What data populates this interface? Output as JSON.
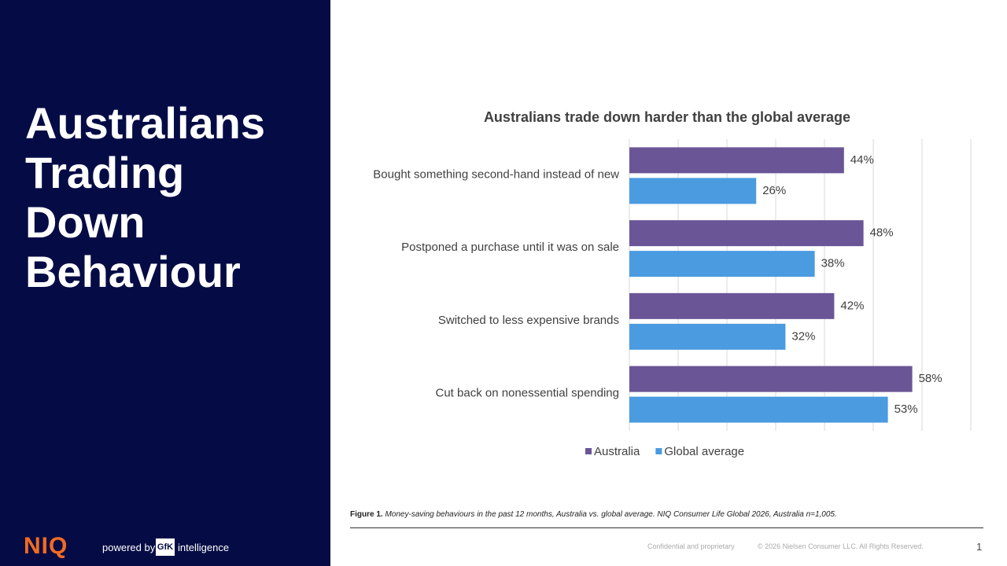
{
  "slide": {
    "title_lines": [
      "Australians",
      "Trading",
      "Down",
      "Behaviour"
    ],
    "caption": {
      "label": "Figure 1.",
      "text": "Money-saving behaviours in the past 12 months, Australia vs. global average. NIQ Consumer Life Global 2026, Australia n=1,005."
    },
    "footer": {
      "confidential": "Confidential and proprietary",
      "copyright": "© 2026 Nielsen Consumer LLC. All Rights Reserved.",
      "page": "1"
    },
    "logo": {
      "brand": "NIQ",
      "powered": "powered by",
      "gfk": "GfK",
      "intelligence": "intelligence"
    }
  },
  "chart_data": {
    "type": "hbar",
    "title": "Australians trade down harder than the global average",
    "categories": [
      "Bought something second-hand instead of new",
      "Postponed a purchase until it was on sale",
      "Switched to less expensive brands",
      "Cut back on nonessential spending"
    ],
    "series": [
      {
        "name": "Australia",
        "color": "#6a5696",
        "values": [
          44,
          48,
          42,
          58
        ],
        "value_labels": [
          "44%",
          "48%",
          "42%",
          "58%"
        ]
      },
      {
        "name": "Global average",
        "color": "#4a9be0",
        "values": [
          26,
          38,
          32,
          53
        ],
        "value_labels": [
          "26%",
          "38%",
          "32%",
          "53%"
        ]
      }
    ],
    "xlim": [
      0,
      70
    ],
    "xticks": [
      0,
      10,
      20,
      30,
      40,
      50,
      60,
      70
    ],
    "grid": true,
    "legend": "bottom"
  }
}
